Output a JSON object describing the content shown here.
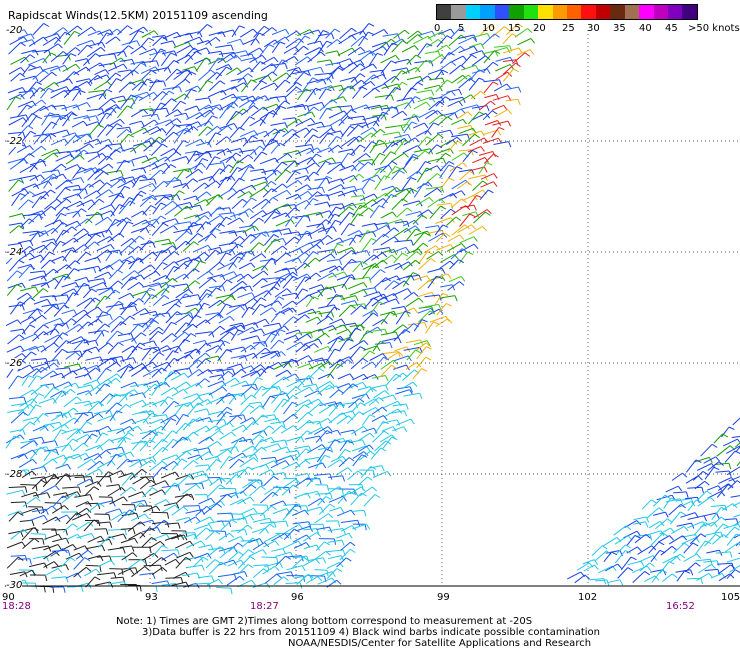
{
  "title": "Rapidscat Winds(12.5KM) 20151109 ascending",
  "legend": {
    "colors": [
      "#404040",
      "#9a9a9a",
      "#00d0ff",
      "#00a0ff",
      "#3050ff",
      "#10a000",
      "#20e010",
      "#ffe000",
      "#ff9a00",
      "#ff6000",
      "#ff1010",
      "#c00000",
      "#6a2a10",
      "#a07050",
      "#ff00ff",
      "#c000c0",
      "#8000c0",
      "#400080"
    ],
    "labels": [
      "0",
      "5",
      "10",
      "15",
      "20",
      "25",
      "30",
      "35",
      "40",
      "45",
      ">50 knots"
    ]
  },
  "axes": {
    "lat_labels": [
      "-20",
      "-22",
      "-24",
      "-26",
      "-28",
      "-30"
    ],
    "lon_labels": [
      "90",
      "93",
      "96",
      "99",
      "102",
      "105"
    ]
  },
  "pass_times": [
    "18:28",
    "18:27",
    "16:52"
  ],
  "notes": [
    "Note: 1) Times are GMT 2)Times along bottom correspond to measurement at -20S",
    "3)Data buffer is 22 hrs from 20151109 4) Black wind barbs indicate possible contamination",
    "NOAA/NESDIS/Center for Satellite Applications and Research"
  ]
}
